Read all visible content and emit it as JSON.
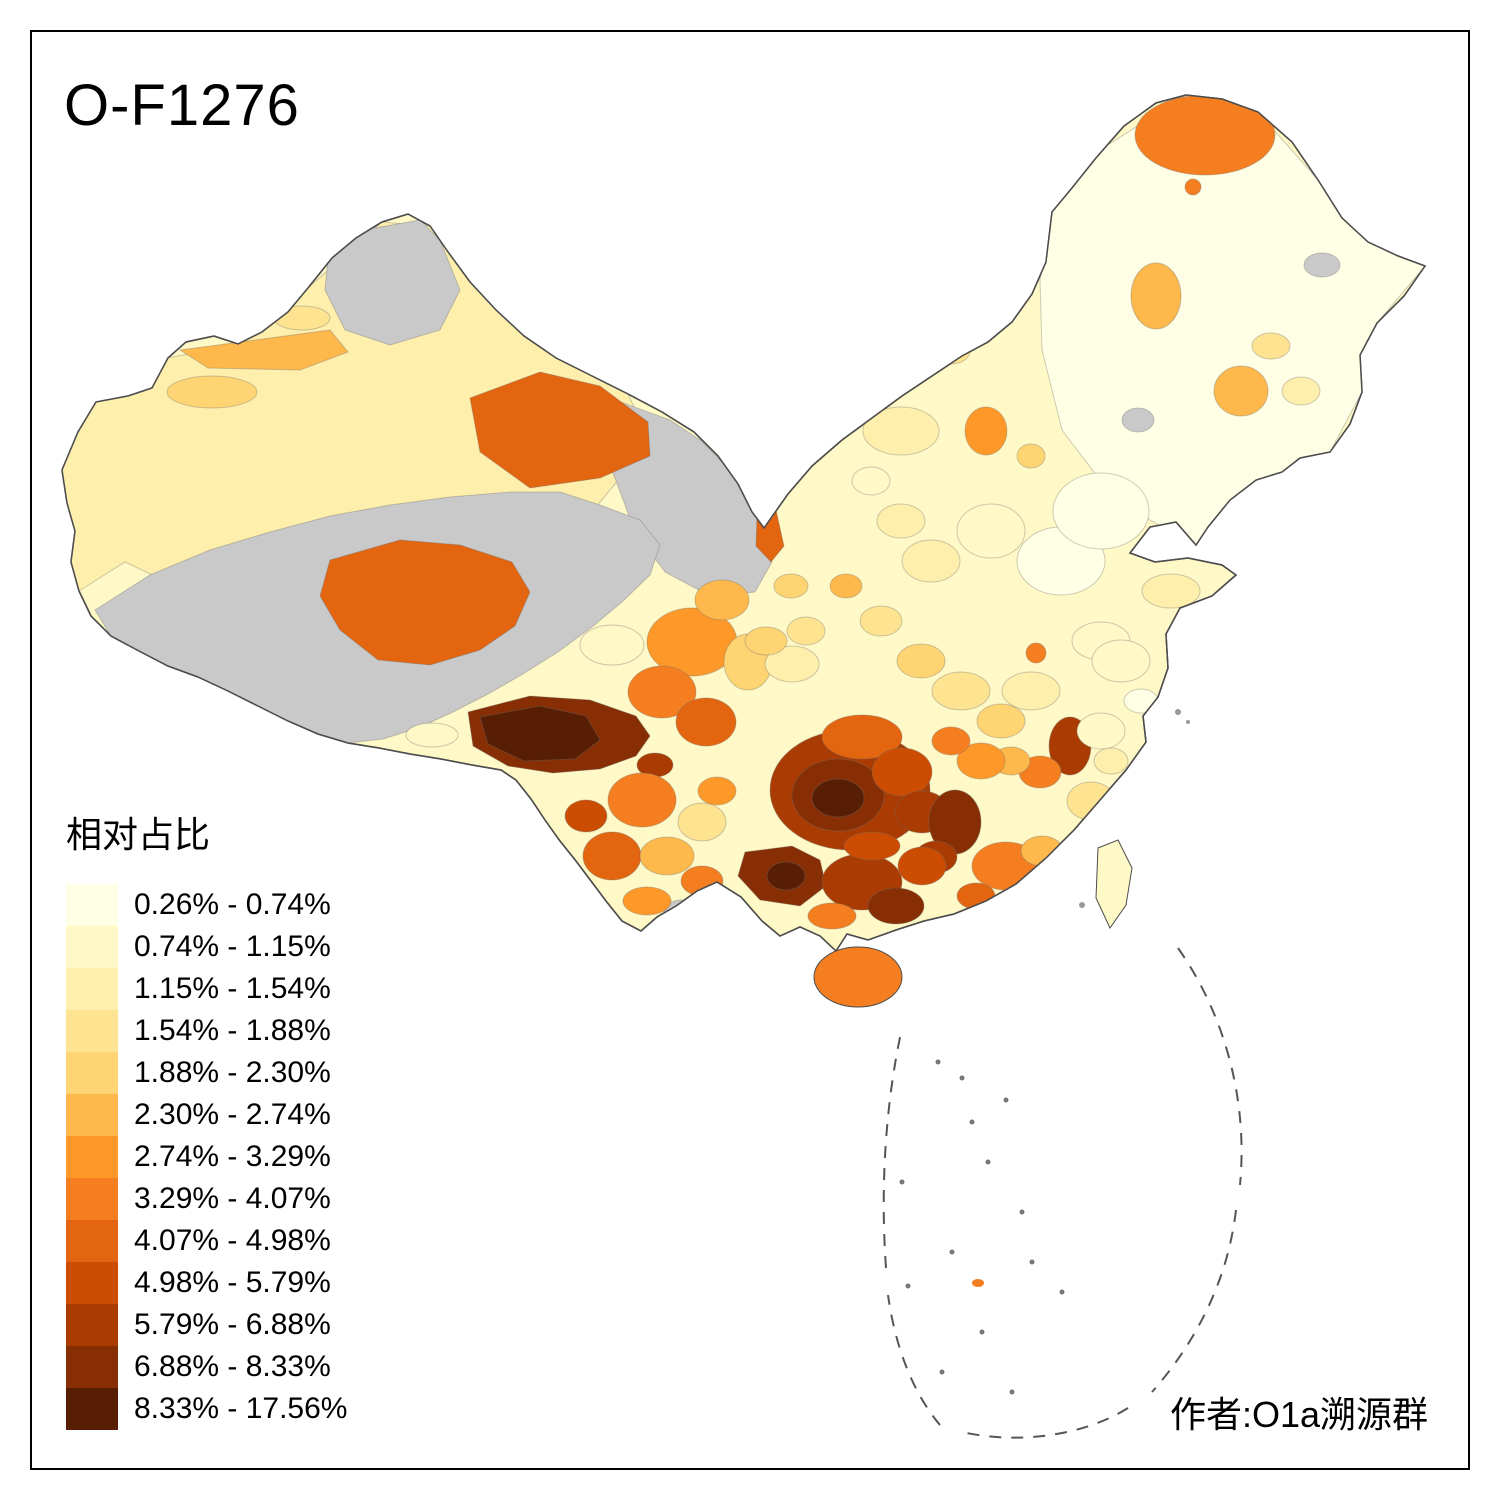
{
  "title": "O-F1276",
  "legend": {
    "title": "相对占比",
    "items": [
      {
        "label": "0.26% - 0.74%",
        "color": "#FFFFE5"
      },
      {
        "label": "0.74% - 1.15%",
        "color": "#FFF9C7"
      },
      {
        "label": "1.15% - 1.54%",
        "color": "#FEEFAD"
      },
      {
        "label": "1.54% - 1.88%",
        "color": "#FEE391"
      },
      {
        "label": "1.88% - 2.30%",
        "color": "#FED572"
      },
      {
        "label": "2.30% - 2.74%",
        "color": "#FEB84B"
      },
      {
        "label": "2.74% - 3.29%",
        "color": "#FE9929"
      },
      {
        "label": "3.29% - 4.07%",
        "color": "#F57F20"
      },
      {
        "label": "4.07% - 4.98%",
        "color": "#E4650F"
      },
      {
        "label": "4.98% - 5.79%",
        "color": "#CC4C02"
      },
      {
        "label": "5.79% - 6.88%",
        "color": "#AA3C03"
      },
      {
        "label": "6.88% - 8.33%",
        "color": "#872E04"
      },
      {
        "label": "8.33% - 17.56%",
        "color": "#571E03"
      }
    ]
  },
  "attribution": "作者:O1a溯源群",
  "map": {
    "no_data_color": "#C9C9C9",
    "border_color": "#4D4D4D",
    "sea_line_color": "#555555",
    "background_color": "#FFFFFF"
  }
}
